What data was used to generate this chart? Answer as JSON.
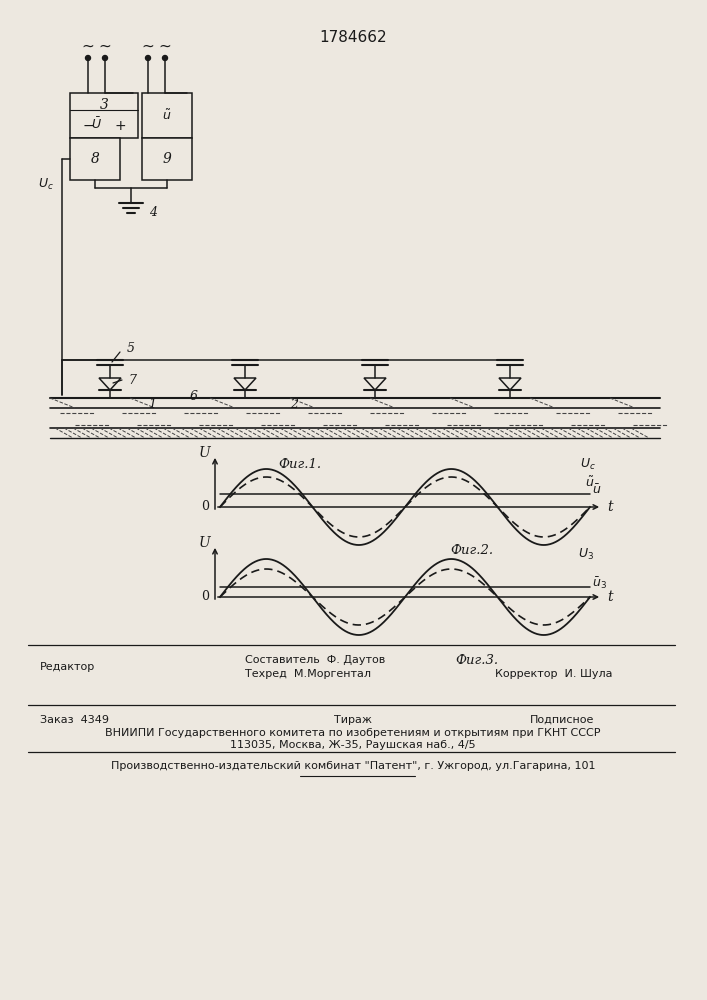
{
  "title": "1784662",
  "bg": "#ede8e0",
  "footer_editor": "Редактор",
  "footer_line1": "Составитель  Ф. Даутов",
  "footer_line2": "Техред  М.Моргентал",
  "footer_corrector": "Корректор  И. Шула",
  "footer_order": "Заказ  4349",
  "footer_tirazh": "Тираж",
  "footer_podpisnoe": "Подписное",
  "footer_vniiipi": "ВНИИПИ Государственного комитета по изобретениям и открытиям при ГКНТ СССР",
  "footer_address": "113035, Москва, Ж-35, Раушская наб., 4/5",
  "footer_patent": "Производственно-издательский комбинат \"Патент\", г. Ужгород, ул.Гагарина, 101",
  "fig1_label": "Фиг.1.",
  "fig2_label": "Фиг.2.",
  "fig3_label": "Фиг.3."
}
